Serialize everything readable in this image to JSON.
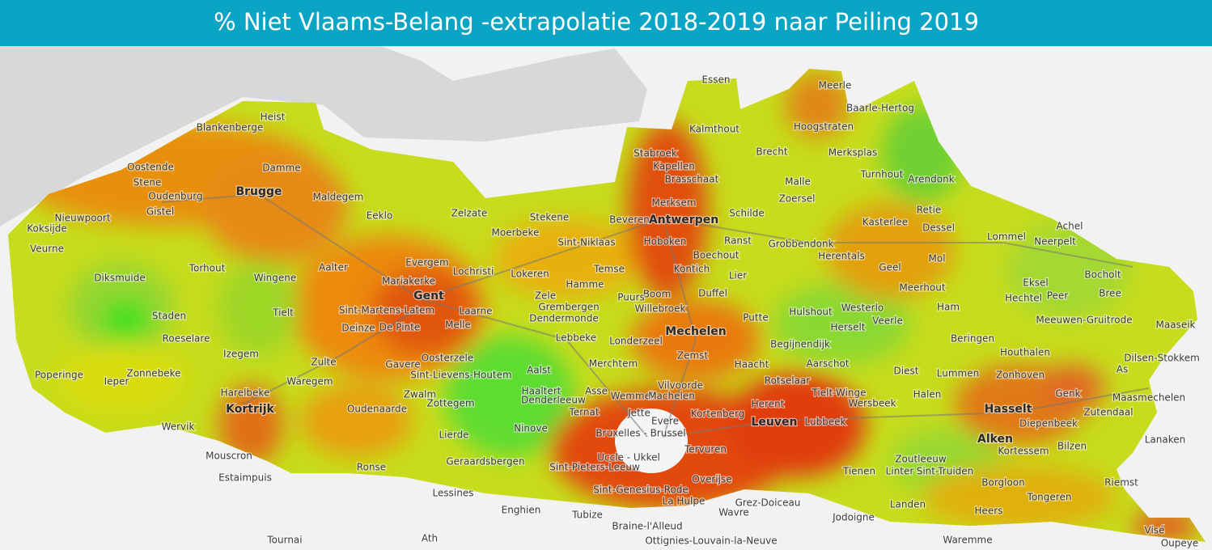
{
  "header": {
    "title": "% Niet Vlaams-Belang -extrapolatie 2018-2019 naar Peiling 2019"
  },
  "map": {
    "labels": [
      "Essen",
      "Meerle",
      "Baarle-Hertog",
      "Heist",
      "Blankenberge",
      "Kalmthout",
      "Hoogstraten",
      "Brecht",
      "Merksplas",
      "Stabroek",
      "Kapellen",
      "Oostende",
      "Damme",
      "Brasschaat",
      "Turnhout",
      "Arendonk",
      "Stene",
      "Malle",
      "Oudenburg",
      "Brugge",
      "Maldegem",
      "Zoersel",
      "Gistel",
      "Eeklo",
      "Zelzate",
      "Stekene",
      "Beveren",
      "Antwerpen",
      "Merksem",
      "Schilde",
      "Retie",
      "Nieuwpoort",
      "Kasterlee",
      "Dessel",
      "Koksijde",
      "Moerbeke",
      "Sint-Niklaas",
      "Hoboken",
      "Ranst",
      "Grobbendonk",
      "Lommel",
      "Achel",
      "Neerpelt",
      "Veurne",
      "Torhout",
      "Aalter",
      "Evergem",
      "Lochristi",
      "Temse",
      "Boechout",
      "Herentals",
      "Geel",
      "Mol",
      "Wingene",
      "Lokeren",
      "Kontich",
      "Lier",
      "Diksmuide",
      "Mariakerke",
      "Hamme",
      "Eksel",
      "Bocholt",
      "Gent",
      "Zele",
      "Boom",
      "Puurs",
      "Duffel",
      "Meerhout",
      "Peer",
      "Hechtel",
      "Bree",
      "Staden",
      "Tielt",
      "Sint-Martens-Latem",
      "Laarne",
      "Grembergen",
      "Willebroek",
      "Hulshout",
      "Westerlo",
      "Ham",
      "Dendermonde",
      "Veerle",
      "Meeuwen-Gruitrode",
      "Maaseik",
      "Deinze",
      "De Pinte",
      "Melle",
      "Mechelen",
      "Putte",
      "Herselt",
      "Roeselare",
      "Lebbeke",
      "Londerzeel",
      "Beringen",
      "Begijnendijk",
      "Izegem",
      "Oosterzele",
      "Zemst",
      "Houthalen",
      "Dilsen-Stokkem",
      "Gavere",
      "Zulte",
      "Aarschot",
      "Merchtem",
      "Haacht",
      "Diest",
      "Poperinge",
      "Zonnebeke",
      "Sint-Lievens-Houtem",
      "Aalst",
      "Lummen",
      "Zonhoven",
      "As",
      "Ieper",
      "Waregem",
      "Vilvoorde",
      "Rotselaar",
      "Tielt-Winge",
      "Wersbeek",
      "Haaltert",
      "Asse",
      "Wemmel",
      "Machelen",
      "Halen",
      "Genk",
      "Maasmechelen",
      "Harelbeke",
      "Zwalm",
      "Denderleeuw",
      "Zottegem",
      "Oudenaarde",
      "Herent",
      "Kortrijk",
      "Hasselt",
      "Jette",
      "Ternat",
      "Kortenberg",
      "Lubbeek",
      "Zutendaal",
      "Diepenbeek",
      "Leuven",
      "Evere",
      "Wervik",
      "Ninove",
      "Bruxelles - Brussel",
      "Lierde",
      "Alken",
      "Kortessem",
      "Lanaken",
      "Bilzen",
      "Tervuren",
      "Uccle - Ukkel",
      "Mouscron",
      "Geraardsbergen",
      "Zoutleeuw",
      "Linter",
      "Sint-Truiden",
      "Tienen",
      "Ronse",
      "Sint-Pieters-Leeuw",
      "Riemst",
      "Estaimpuis",
      "Overijse",
      "Borgloon",
      "Sint-Genesius-Rode",
      "Lessines",
      "Tongeren",
      "La Hulpe",
      "Grez-Doiceau",
      "Landen",
      "Heers",
      "Enghien",
      "Tubize",
      "Wavre",
      "Jodoigne",
      "Braine-l'Alleud",
      "Visé",
      "Ath",
      "Tournai",
      "Ottignies-Louvain-la-Neuve",
      "Waremme",
      "Oupeye"
    ]
  }
}
